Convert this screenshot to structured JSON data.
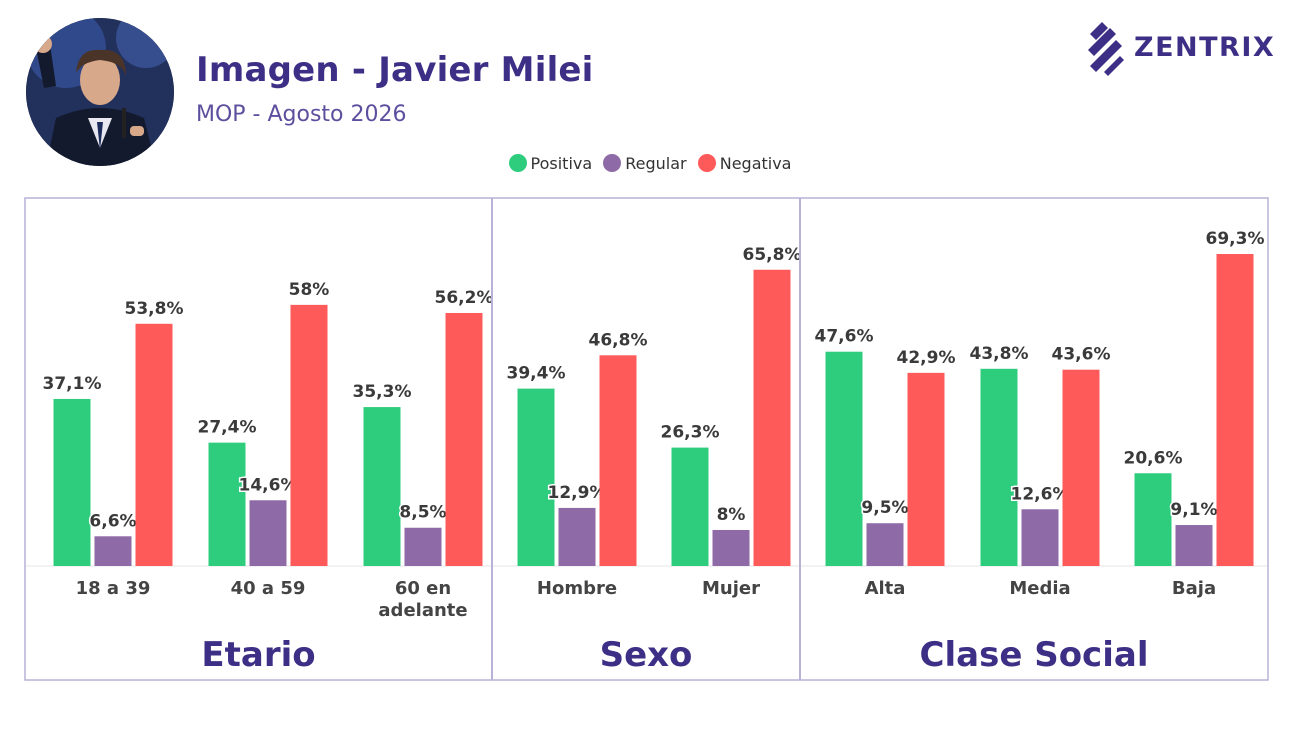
{
  "header": {
    "title": "Imagen - Javier Milei",
    "subtitle": "MOP - Agosto 2026",
    "brand": "ZENTRIX"
  },
  "colors": {
    "positiva": "#2ecc7d",
    "regular": "#8e6aa6",
    "negativa": "#ff5a5a",
    "title": "#3e2f86",
    "frame": "#b7b2d6"
  },
  "chart_data": {
    "type": "bar",
    "legend": [
      "Positiva",
      "Regular",
      "Negativa"
    ],
    "legend_position": "top-center",
    "grid": false,
    "ylim": [
      0,
      70
    ],
    "panels": [
      {
        "title": "Etario",
        "categories": [
          "18 a 39",
          "40 a 59",
          "60 en adelante"
        ],
        "series": [
          {
            "name": "Positiva",
            "values": [
              37.1,
              27.4,
              35.3
            ],
            "labels": [
              "37,1%",
              "27,4%",
              "35,3%"
            ]
          },
          {
            "name": "Regular",
            "values": [
              6.6,
              14.6,
              8.5
            ],
            "labels": [
              "6,6%",
              "14,6%",
              "8,5%"
            ]
          },
          {
            "name": "Negativa",
            "values": [
              53.8,
              58,
              56.2
            ],
            "labels": [
              "53,8%",
              "58%",
              "56,2%"
            ]
          }
        ]
      },
      {
        "title": "Sexo",
        "categories": [
          "Hombre",
          "Mujer"
        ],
        "series": [
          {
            "name": "Positiva",
            "values": [
              39.4,
              26.3
            ],
            "labels": [
              "39,4%",
              "26,3%"
            ]
          },
          {
            "name": "Regular",
            "values": [
              12.9,
              8
            ],
            "labels": [
              "12,9%",
              "8%"
            ]
          },
          {
            "name": "Negativa",
            "values": [
              46.8,
              65.8
            ],
            "labels": [
              "46,8%",
              "65,8%"
            ]
          }
        ]
      },
      {
        "title": "Clase Social",
        "categories": [
          "Alta",
          "Media",
          "Baja"
        ],
        "series": [
          {
            "name": "Positiva",
            "values": [
              47.6,
              43.8,
              20.6
            ],
            "labels": [
              "47,6%",
              "43,8%",
              "20,6%"
            ]
          },
          {
            "name": "Regular",
            "values": [
              9.5,
              12.6,
              9.1
            ],
            "labels": [
              "9,5%",
              "12,6%",
              "9,1%"
            ]
          },
          {
            "name": "Negativa",
            "values": [
              42.9,
              43.6,
              69.3
            ],
            "labels": [
              "42,9%",
              "43,6%",
              "69,3%"
            ]
          }
        ]
      }
    ]
  }
}
